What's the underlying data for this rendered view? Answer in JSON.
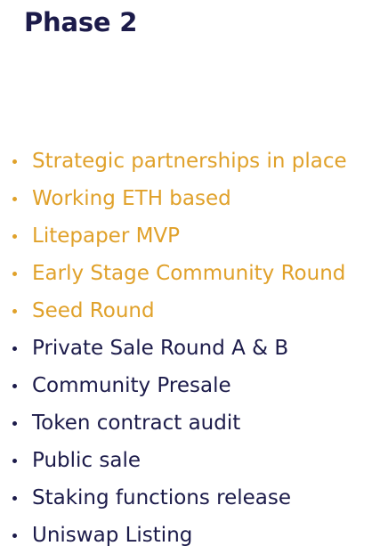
{
  "phase": {
    "title": "Phase 2"
  },
  "colors": {
    "completed": "#e0a12a",
    "pending": "#1c1b4a",
    "title": "#1c1b4a"
  },
  "items": [
    {
      "label": "Strategic partnerships in place",
      "status": "completed"
    },
    {
      "label": "Working ETH based",
      "status": "completed"
    },
    {
      "label": "Litepaper MVP",
      "status": "completed"
    },
    {
      "label": "Early Stage Community Round",
      "status": "completed"
    },
    {
      "label": "Seed Round",
      "status": "completed"
    },
    {
      "label": "Private Sale Round A & B",
      "status": "pending"
    },
    {
      "label": "Community Presale",
      "status": "pending"
    },
    {
      "label": "Token contract audit",
      "status": "pending"
    },
    {
      "label": "Public sale",
      "status": "pending"
    },
    {
      "label": "Staking functions release",
      "status": "pending"
    },
    {
      "label": "Uniswap Listing",
      "status": "pending"
    }
  ]
}
